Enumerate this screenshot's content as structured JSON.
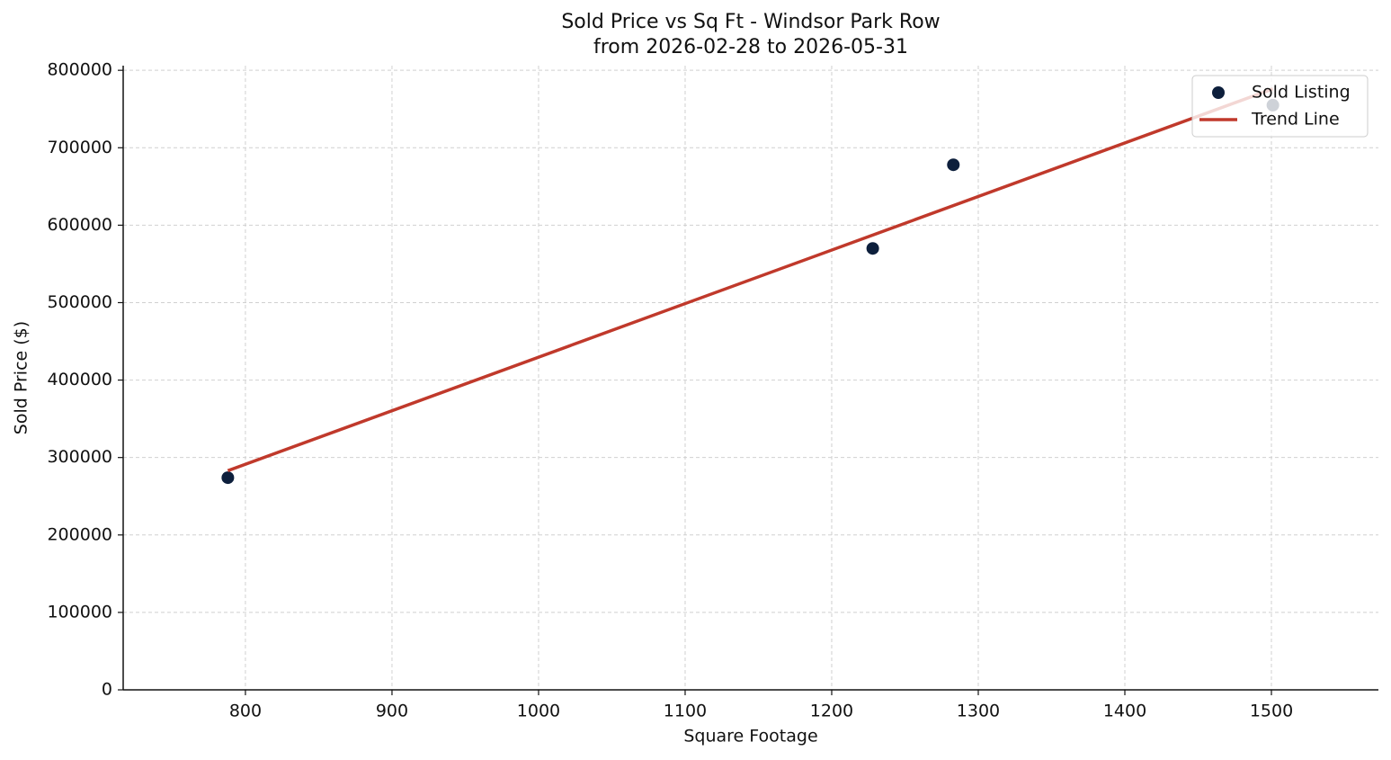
{
  "chart_data": {
    "type": "scatter",
    "title": "Sold Price vs Sq Ft - Windsor Park Row",
    "subtitle": "from 2026-02-28 to 2026-05-31",
    "x_label": "Square Footage",
    "y_label": "Sold Price ($)",
    "xlim": [
      716.6,
      1573
    ],
    "ylim": [
      0,
      806000
    ],
    "xticks": [
      800,
      900,
      1000,
      1100,
      1200,
      1300,
      1400,
      1500
    ],
    "yticks": [
      0,
      100000,
      200000,
      300000,
      400000,
      500000,
      600000,
      700000,
      800000
    ],
    "grid": true,
    "legend": "upper-right",
    "series": [
      {
        "name": "Sold Listing",
        "type": "scatter",
        "color": "#0d1f3c",
        "x": [
          788,
          1228,
          1283,
          1501
        ],
        "values": [
          274000,
          570000,
          678000,
          755000
        ]
      },
      {
        "name": "Trend Line",
        "type": "line",
        "color": "#c0392b",
        "x": [
          788,
          1501
        ],
        "values": [
          283000,
          776000
        ]
      }
    ]
  }
}
